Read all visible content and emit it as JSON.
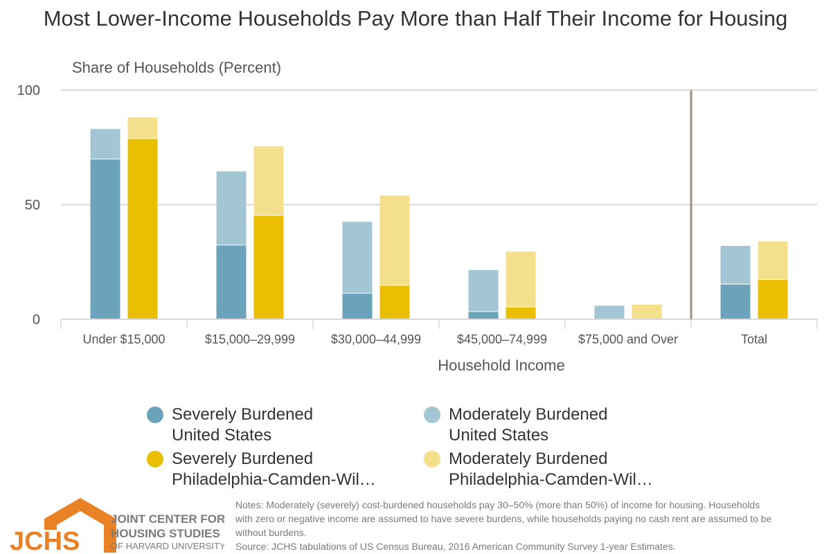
{
  "title": "Most Lower-Income Households Pay More than Half Their Income for Housing",
  "colors": {
    "severe_us": "#6ba3bb",
    "moderate_us": "#a3c5d4",
    "severe_phl": "#e9bf00",
    "moderate_phl": "#f4df8c",
    "divider": "#9b8f85",
    "grid": "#d9d9d9",
    "logo_orange": "#e98226",
    "logo_gray": "#7b7b7b"
  },
  "legend": [
    {
      "line1": "Severely Burdened",
      "line2": "United States",
      "color": "#6ba3bb"
    },
    {
      "line1": "Moderately Burdened",
      "line2": "United States",
      "color": "#a3c5d4"
    },
    {
      "line1": "Severely Burdened",
      "line2": "Philadelphia-Camden-Wil…",
      "color": "#e9bf00"
    },
    {
      "line1": "Moderately Burdened",
      "line2": "Philadelphia-Camden-Wil…",
      "color": "#f4df8c"
    }
  ],
  "logo": {
    "abbr": "JCHS",
    "line1": "JOINT CENTER FOR",
    "line2": "HOUSING STUDIES",
    "line3": "OF HARVARD UNIVERSITY"
  },
  "notes": {
    "line1": "Notes: Moderately (severely) cost-burdened households pay 30–50% (more than 50%) of income for housing. Households",
    "line2": "with zero or negative income are assumed to have severe burdens, while households paying no cash rent are assumed to be",
    "line3": "without burdens.",
    "source": "Source: JCHS tabulations of US Census Bureau, 2016 American Community Survey 1-year Estimates."
  },
  "chart_data": {
    "type": "bar",
    "stacked": true,
    "ylabel": "Share of Households (Percent)",
    "xlabel": "Household Income",
    "ylim": [
      0,
      100
    ],
    "yticks": [
      0,
      50,
      100
    ],
    "grid": true,
    "categories": [
      "Under $15,000",
      "$15,000–29,999",
      "$30,000–44,999",
      "$45,000–74,999",
      "$75,000 and Over",
      "Total"
    ],
    "series": [
      {
        "name": "Severely Burdened United States",
        "stack": "us",
        "values": [
          70,
          32.5,
          11.5,
          3.5,
          0.4,
          15.5
        ]
      },
      {
        "name": "Moderately Burdened United States",
        "stack": "us",
        "values": [
          13,
          32,
          31,
          18,
          5.5,
          16.5
        ]
      },
      {
        "name": "Severely Burdened Philadelphia-Camden-Wil…",
        "stack": "phl",
        "values": [
          79,
          45.5,
          15,
          5.5,
          0.4,
          17.5
        ]
      },
      {
        "name": "Moderately Burdened Philadelphia-Camden-Wil…",
        "stack": "phl",
        "values": [
          9,
          30,
          39,
          24,
          6,
          16.5
        ]
      }
    ],
    "legend_position": "bottom"
  }
}
